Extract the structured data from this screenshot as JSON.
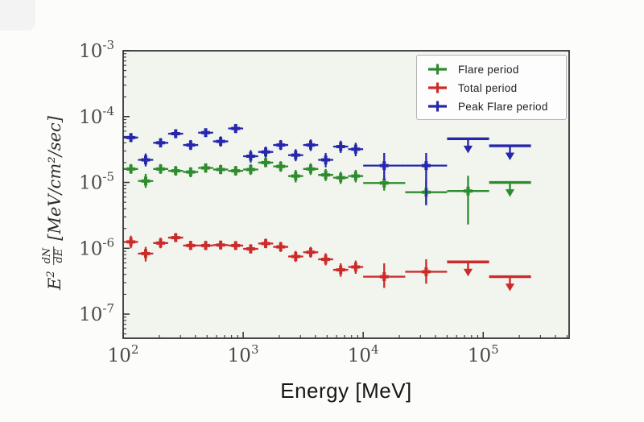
{
  "figure": {
    "plot_bg": "#f2f4ee",
    "frame_color": "#333333",
    "tick_color": "#333333",
    "tick_label_color": "#4a4a4a"
  },
  "chart_data": {
    "type": "scatter",
    "title": "",
    "xlabel": "Energy [MeV]",
    "ylabel": {
      "prefix": "E",
      "prefix_sup": "2",
      "frac_num": "dN",
      "frac_den": "dE",
      "unit": "[MeV/cm²/sec]"
    },
    "xscale": "log",
    "yscale": "log",
    "xlim": [
      100,
      520000
    ],
    "ylim": [
      4.3e-08,
      0.001
    ],
    "x_tick_exponents": [
      2,
      3,
      4,
      5
    ],
    "y_tick_exponents": [
      -3,
      -4,
      -5,
      -6,
      -7
    ],
    "grid": false,
    "legend_position": "upper right",
    "point_format": [
      "e_lo",
      "e",
      "e_hi",
      "f_lo",
      "f",
      "f_hi",
      "upper_limit"
    ],
    "series": [
      {
        "name": "Flare period",
        "color": "#2e8b2e",
        "points": [
          [
            100,
            116,
            133,
            1.35e-05,
            1.6e-05,
            1.9e-05,
            0
          ],
          [
            133,
            154,
            178,
            8.3e-06,
            1.05e-05,
            1.35e-05,
            0
          ],
          [
            178,
            205,
            237,
            1.35e-05,
            1.6e-05,
            1.9e-05,
            0
          ],
          [
            237,
            274,
            316,
            1.27e-05,
            1.5e-05,
            1.78e-05,
            0
          ],
          [
            316,
            365,
            422,
            1.2e-05,
            1.44e-05,
            1.7e-05,
            0
          ],
          [
            422,
            487,
            562,
            1.4e-05,
            1.66e-05,
            1.95e-05,
            0
          ],
          [
            562,
            649,
            750,
            1.33e-05,
            1.57e-05,
            1.85e-05,
            0
          ],
          [
            750,
            866,
            1000,
            1.27e-05,
            1.5e-05,
            1.78e-05,
            0
          ],
          [
            1000,
            1155,
            1334,
            1.3e-05,
            1.57e-05,
            1.9e-05,
            0
          ],
          [
            1334,
            1540,
            1778,
            1.7e-05,
            2e-05,
            2.4e-05,
            0
          ],
          [
            1778,
            2054,
            2371,
            1.45e-05,
            1.75e-05,
            2.1e-05,
            0
          ],
          [
            2371,
            2738,
            3162,
            1e-05,
            1.25e-05,
            1.55e-05,
            0
          ],
          [
            3162,
            3652,
            4217,
            1.3e-05,
            1.6e-05,
            1.95e-05,
            0
          ],
          [
            4217,
            4870,
            5623,
            1.05e-05,
            1.3e-05,
            1.6e-05,
            0
          ],
          [
            5623,
            6494,
            7499,
            9.5e-06,
            1.18e-05,
            1.45e-05,
            0
          ],
          [
            7499,
            8660,
            10000,
            1e-05,
            1.25e-05,
            1.55e-05,
            0
          ],
          [
            10000,
            14960,
            22400,
            7.5e-06,
            9.8e-06,
            1.25e-05,
            0
          ],
          [
            22400,
            33470,
            50000,
            4.7e-06,
            7.1e-06,
            1.1e-05,
            0
          ],
          [
            50000,
            74800,
            112000,
            2.3e-06,
            7.4e-06,
            1.26e-05,
            0
          ],
          [
            112000,
            167000,
            250000,
            1e-05,
            1e-05,
            1e-05,
            1
          ]
        ]
      },
      {
        "name": "Total period",
        "color": "#cc2b2b",
        "points": [
          [
            100,
            116,
            133,
            1e-06,
            1.25e-06,
            1.55e-06,
            0
          ],
          [
            133,
            154,
            178,
            6.3e-07,
            8.3e-07,
            1.05e-06,
            0
          ],
          [
            178,
            205,
            237,
            1e-06,
            1.2e-06,
            1.45e-06,
            0
          ],
          [
            237,
            274,
            316,
            1.25e-06,
            1.45e-06,
            1.7e-06,
            0
          ],
          [
            316,
            365,
            422,
            9.5e-07,
            1.1e-06,
            1.3e-06,
            0
          ],
          [
            422,
            487,
            562,
            9.5e-07,
            1.1e-06,
            1.3e-06,
            0
          ],
          [
            562,
            649,
            750,
            9.6e-07,
            1.12e-06,
            1.3e-06,
            0
          ],
          [
            750,
            866,
            1000,
            9.5e-07,
            1.1e-06,
            1.28e-06,
            0
          ],
          [
            1000,
            1155,
            1334,
            8.3e-07,
            9.8e-07,
            1.15e-06,
            0
          ],
          [
            1334,
            1540,
            1778,
            1e-06,
            1.18e-06,
            1.4e-06,
            0
          ],
          [
            1778,
            2054,
            2371,
            8.8e-07,
            1.05e-06,
            1.25e-06,
            0
          ],
          [
            2371,
            2738,
            3162,
            6.2e-07,
            7.5e-07,
            9.1e-07,
            0
          ],
          [
            3162,
            3652,
            4217,
            7.2e-07,
            8.7e-07,
            1.05e-06,
            0
          ],
          [
            4217,
            4870,
            5623,
            5.5e-07,
            6.8e-07,
            8.4e-07,
            0
          ],
          [
            5623,
            6494,
            7499,
            3.7e-07,
            4.7e-07,
            5.9e-07,
            0
          ],
          [
            7499,
            8660,
            10000,
            4.1e-07,
            5.2e-07,
            6.5e-07,
            0
          ],
          [
            10000,
            14960,
            22400,
            2.5e-07,
            3.7e-07,
            5.9e-07,
            0
          ],
          [
            22400,
            33470,
            50000,
            2.9e-07,
            4.4e-07,
            6.8e-07,
            0
          ],
          [
            50000,
            74800,
            112000,
            6.2e-07,
            6.2e-07,
            6.2e-07,
            1
          ],
          [
            112000,
            167000,
            250000,
            3.7e-07,
            3.7e-07,
            3.7e-07,
            1
          ]
        ]
      },
      {
        "name": "Peak Flare period",
        "color": "#2727ad",
        "points": [
          [
            100,
            116,
            133,
            4.1e-05,
            4.8e-05,
            5.6e-05,
            0
          ],
          [
            133,
            154,
            178,
            1.75e-05,
            2.2e-05,
            2.75e-05,
            0
          ],
          [
            178,
            205,
            237,
            3.4e-05,
            4e-05,
            4.7e-05,
            0
          ],
          [
            237,
            274,
            316,
            4.7e-05,
            5.5e-05,
            6.4e-05,
            0
          ],
          [
            316,
            365,
            422,
            3.1e-05,
            3.7e-05,
            4.4e-05,
            0
          ],
          [
            422,
            487,
            562,
            4.9e-05,
            5.7e-05,
            6.6e-05,
            0
          ],
          [
            562,
            649,
            750,
            3.5e-05,
            4.2e-05,
            5e-05,
            0
          ],
          [
            750,
            866,
            1000,
            5.6e-05,
            6.6e-05,
            7.7e-05,
            0
          ],
          [
            1000,
            1155,
            1334,
            2e-05,
            2.5e-05,
            3.1e-05,
            0
          ],
          [
            1334,
            1540,
            1778,
            2.4e-05,
            2.9e-05,
            3.5e-05,
            0
          ],
          [
            1778,
            2054,
            2371,
            3.1e-05,
            3.7e-05,
            4.4e-05,
            0
          ],
          [
            2371,
            2738,
            3162,
            2.1e-05,
            2.6e-05,
            3.2e-05,
            0
          ],
          [
            3162,
            3652,
            4217,
            3e-05,
            3.7e-05,
            4.5e-05,
            0
          ],
          [
            4217,
            4870,
            5623,
            1.7e-05,
            2.2e-05,
            2.8e-05,
            0
          ],
          [
            5623,
            6494,
            7499,
            2.8e-05,
            3.5e-05,
            4.3e-05,
            0
          ],
          [
            7499,
            8660,
            10000,
            2.5e-05,
            3.2e-05,
            4e-05,
            0
          ],
          [
            10000,
            14960,
            22400,
            1.1e-05,
            1.8e-05,
            2.8e-05,
            0
          ],
          [
            22400,
            33470,
            50000,
            4.5e-06,
            1.8e-05,
            2.8e-05,
            0
          ],
          [
            50000,
            74800,
            112000,
            4.6e-05,
            4.6e-05,
            4.6e-05,
            1
          ],
          [
            112000,
            167000,
            250000,
            3.6e-05,
            3.6e-05,
            3.6e-05,
            1
          ]
        ]
      }
    ]
  }
}
